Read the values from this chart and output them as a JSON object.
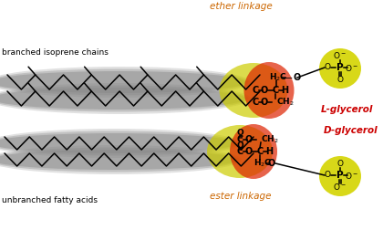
{
  "bg_color": "#ffffff",
  "top_label": "branched isoprene chains",
  "bottom_label": "unbranched fatty acids",
  "top_linkage": "ether linkage",
  "bottom_linkage": "ester linkage",
  "top_glycerol": "L-glycerol",
  "bottom_glycerol": "D-glycerol",
  "orange_color": "#cc6600",
  "red_color": "#cc0000",
  "chain_gray": "#888888",
  "phosphate_yellow": "#cccc00",
  "glow_red": "#dd2200",
  "glow_yellow": "#cccc00"
}
